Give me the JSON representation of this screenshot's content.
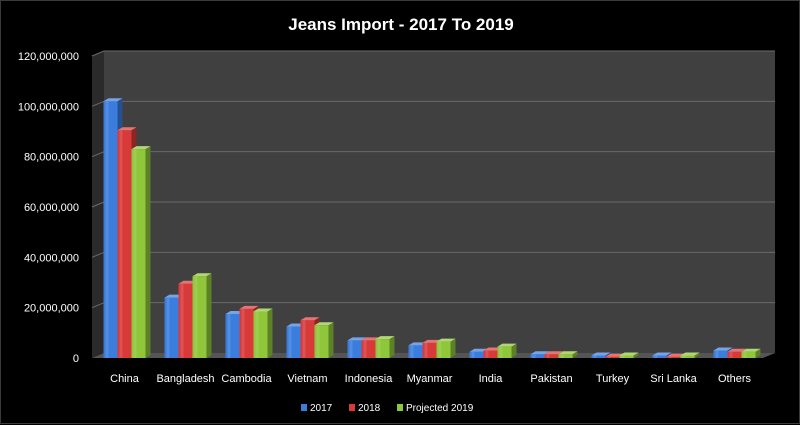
{
  "chart_data": {
    "type": "bar",
    "title": "Jeans Import - 2017 To 2019",
    "xlabel": "",
    "ylabel": "",
    "ylim": [
      0,
      120000000
    ],
    "y_ticks": [
      "0",
      "20,000,000",
      "40,000,000",
      "60,000,000",
      "80,000,000",
      "100,000,000",
      "120,000,000"
    ],
    "y_tick_values": [
      0,
      20000000,
      40000000,
      60000000,
      80000000,
      100000000,
      120000000
    ],
    "grid": true,
    "legend_position": "bottom",
    "categories": [
      "China",
      "Bangladesh",
      "Cambodia",
      "Vietnam",
      "Indonesia",
      "Myanmar",
      "India",
      "Pakistan",
      "Turkey",
      "Sri Lanka",
      "Others"
    ],
    "series": [
      {
        "name": "2017",
        "color": "#3b7ddd",
        "values": [
          102000000,
          24000000,
          17500000,
          12500000,
          7000000,
          5000000,
          2500000,
          1500000,
          1000000,
          1000000,
          3000000
        ]
      },
      {
        "name": "2018",
        "color": "#d83a3a",
        "values": [
          90500000,
          29500000,
          19500000,
          15000000,
          7000000,
          6000000,
          3000000,
          1500000,
          500000,
          500000,
          2500000
        ]
      },
      {
        "name": "Projected 2019",
        "color": "#8fc63a",
        "values": [
          83000000,
          32500000,
          18500000,
          13000000,
          7500000,
          6500000,
          4500000,
          1500000,
          1000000,
          1000000,
          2500000
        ]
      }
    ]
  }
}
